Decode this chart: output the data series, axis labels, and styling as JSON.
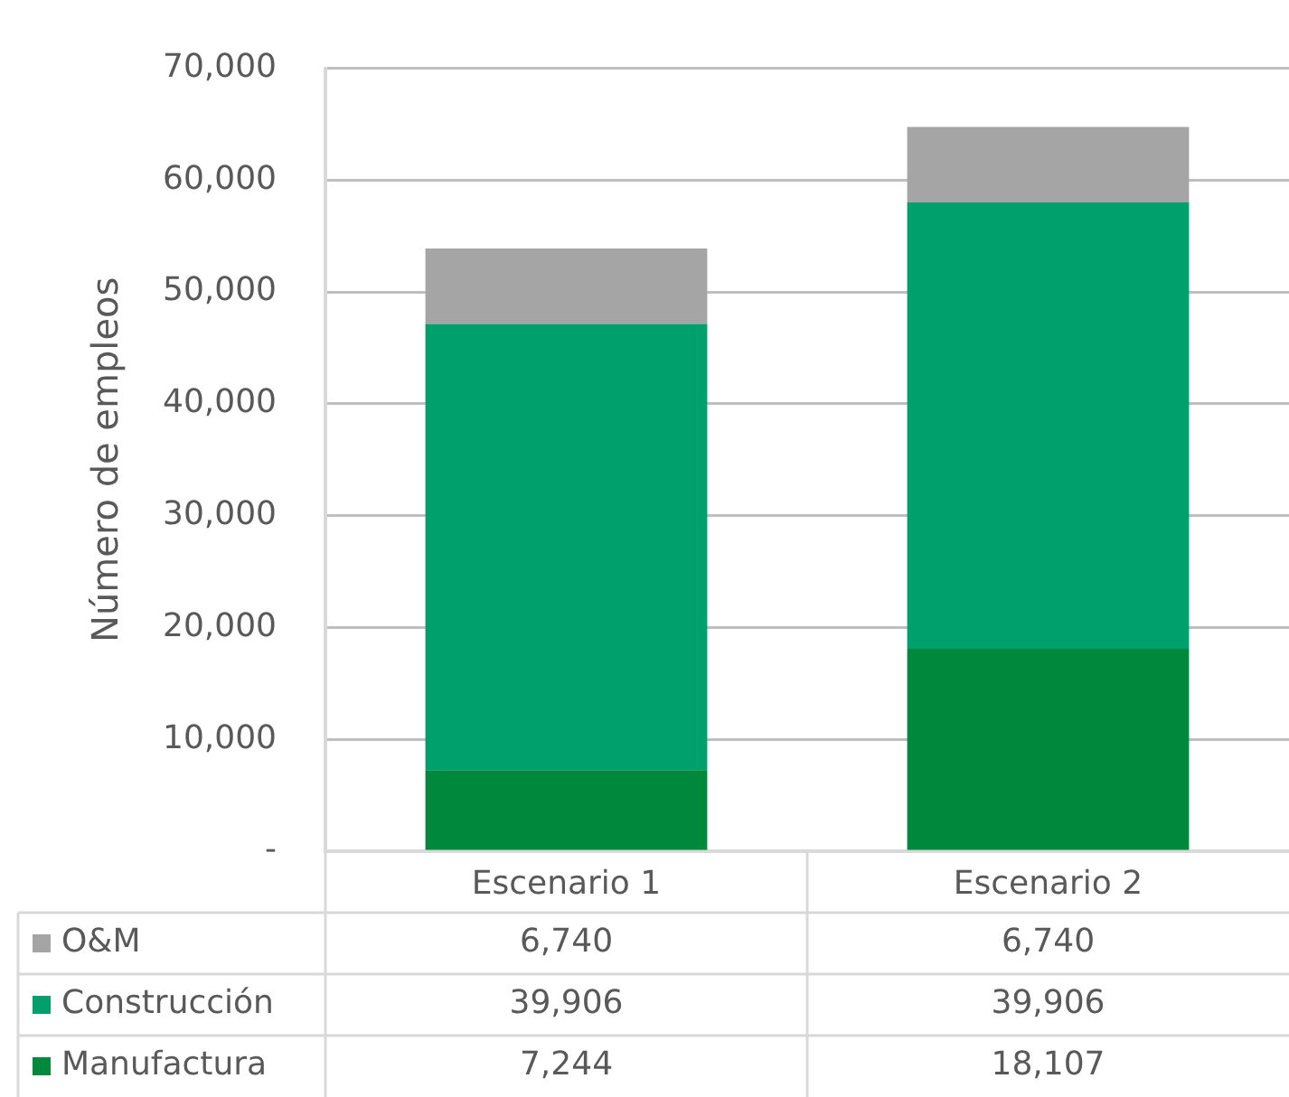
{
  "chart_data": {
    "type": "bar",
    "ylabel": "Número de empleos",
    "categories": [
      "Escenario 1",
      "Escenario 2"
    ],
    "series": [
      {
        "name": "Manufactura",
        "color": "#00883c",
        "values": [
          7244,
          18107
        ],
        "value_labels": [
          "7,244",
          "18,107"
        ]
      },
      {
        "name": "Construcción",
        "color": "#00a06c",
        "values": [
          39906,
          39906
        ],
        "value_labels": [
          "39,906",
          "39,906"
        ]
      },
      {
        "name": "O&M",
        "color": "#a5a5a5",
        "values": [
          6740,
          6740
        ],
        "value_labels": [
          "6,740",
          "6,740"
        ]
      }
    ],
    "stacked": true,
    "ylim": [
      0,
      70000
    ],
    "yticks": [
      {
        "value": 0,
        "label": "-"
      },
      {
        "value": 10000,
        "label": "10,000"
      },
      {
        "value": 20000,
        "label": "20,000"
      },
      {
        "value": 30000,
        "label": "30,000"
      },
      {
        "value": 40000,
        "label": "40,000"
      },
      {
        "value": 50000,
        "label": "50,000"
      },
      {
        "value": 60000,
        "label": "60,000"
      },
      {
        "value": 70000,
        "label": "70,000"
      }
    ],
    "grid": "y",
    "legend": "bottom"
  }
}
